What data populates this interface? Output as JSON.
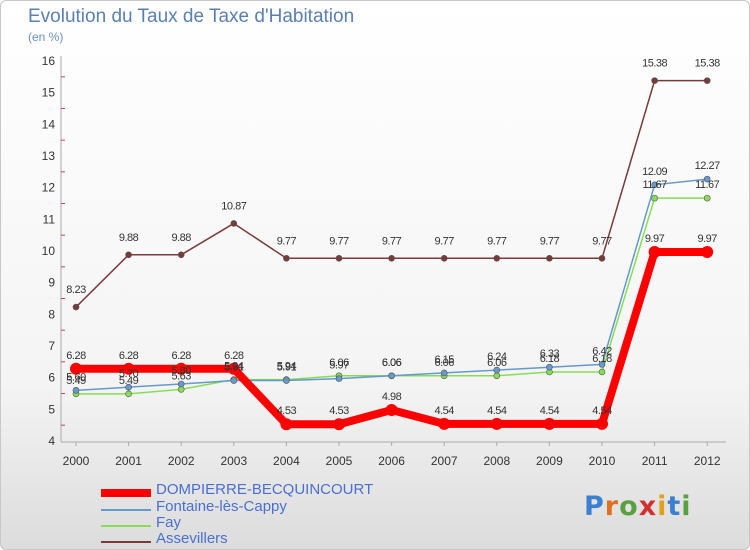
{
  "title": "Evolution du Taux de Taxe d'Habitation",
  "subtitle": "(en %)",
  "logo": {
    "text": "Proxiti",
    "colors": [
      "#3a7fd0",
      "#e07020",
      "#5aa040",
      "#d03030",
      "#e0a020",
      "#3a7fd0",
      "#5aa040"
    ]
  },
  "chart_data": {
    "type": "line",
    "title": "Evolution du Taux de Taxe d'Habitation",
    "ylabel": "(en %)",
    "xlabel": "",
    "x": [
      "2000",
      "2001",
      "2002",
      "2003",
      "2004",
      "2005",
      "2006",
      "2007",
      "2008",
      "2009",
      "2010",
      "2011",
      "2012"
    ],
    "ylim": [
      4,
      16
    ],
    "yticks": [
      "4",
      "5",
      "6",
      "7",
      "8",
      "9",
      "10",
      "11",
      "12",
      "13",
      "14",
      "15",
      "16"
    ],
    "grid": false,
    "legend_position": "bottom-left",
    "series": [
      {
        "name": "DOMPIERRE-BECQUINCOURT",
        "color": "#ff0000",
        "values": [
          6.28,
          6.28,
          6.28,
          6.28,
          4.53,
          4.53,
          4.98,
          4.54,
          4.54,
          4.54,
          4.54,
          9.97,
          9.97
        ],
        "labels": [
          "6.28",
          "6.28",
          "6.28",
          "6.28",
          "4.53",
          "4.53",
          "4.98",
          "4.54",
          "4.54",
          "4.54",
          "4.54",
          "9.97",
          "9.97"
        ]
      },
      {
        "name": "Fontaine-lès-Cappy",
        "color": "#6699cc",
        "values": [
          5.6,
          5.7,
          5.8,
          5.91,
          5.91,
          5.97,
          6.06,
          6.15,
          6.24,
          6.33,
          6.42,
          12.09,
          12.27
        ],
        "labels": [
          "5.60",
          "5.70",
          "5.80",
          "5.91",
          "5.91",
          "5.97",
          "6.06",
          "6.15",
          "6.24",
          "6.33",
          "6.42",
          "12.09",
          "12.27"
        ]
      },
      {
        "name": "Fay",
        "color": "#88dd55",
        "values": [
          5.49,
          5.49,
          5.63,
          5.94,
          5.94,
          6.06,
          6.06,
          6.06,
          6.06,
          6.18,
          6.18,
          11.67,
          11.67
        ],
        "labels": [
          "5.49",
          "5.49",
          "5.63",
          "5.94",
          "5.94",
          "6.06",
          "6.06",
          "6.06",
          "6.06",
          "6.18",
          "6.18",
          "11.67",
          "11.67"
        ]
      },
      {
        "name": "Assevillers",
        "color": "#7a3a3a",
        "values": [
          8.23,
          9.88,
          9.88,
          10.87,
          9.77,
          9.77,
          9.77,
          9.77,
          9.77,
          9.77,
          9.77,
          15.38,
          15.38
        ],
        "labels": [
          "8.23",
          "9.88",
          "9.88",
          "10.87",
          "9.77",
          "9.77",
          "9.77",
          "9.77",
          "9.77",
          "9.77",
          "9.77",
          "15.38",
          "15.38"
        ]
      }
    ]
  }
}
